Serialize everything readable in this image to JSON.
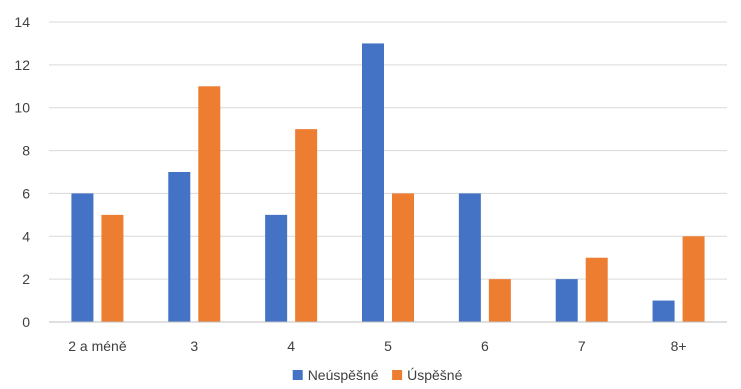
{
  "chart_data": {
    "type": "bar",
    "categories": [
      "2 a méně",
      "3",
      "4",
      "5",
      "6",
      "7",
      "8+"
    ],
    "series": [
      {
        "name": "Neúspěšné",
        "values": [
          6,
          7,
          5,
          13,
          6,
          2,
          1
        ],
        "color": "#4472c4"
      },
      {
        "name": "Úspěšné",
        "values": [
          5,
          11,
          9,
          6,
          2,
          3,
          4
        ],
        "color": "#ed7d31"
      }
    ],
    "ylim": [
      0,
      14
    ],
    "yticks": [
      0,
      2,
      4,
      6,
      8,
      10,
      12,
      14
    ],
    "grid": true,
    "legend_position": "bottom-center"
  }
}
